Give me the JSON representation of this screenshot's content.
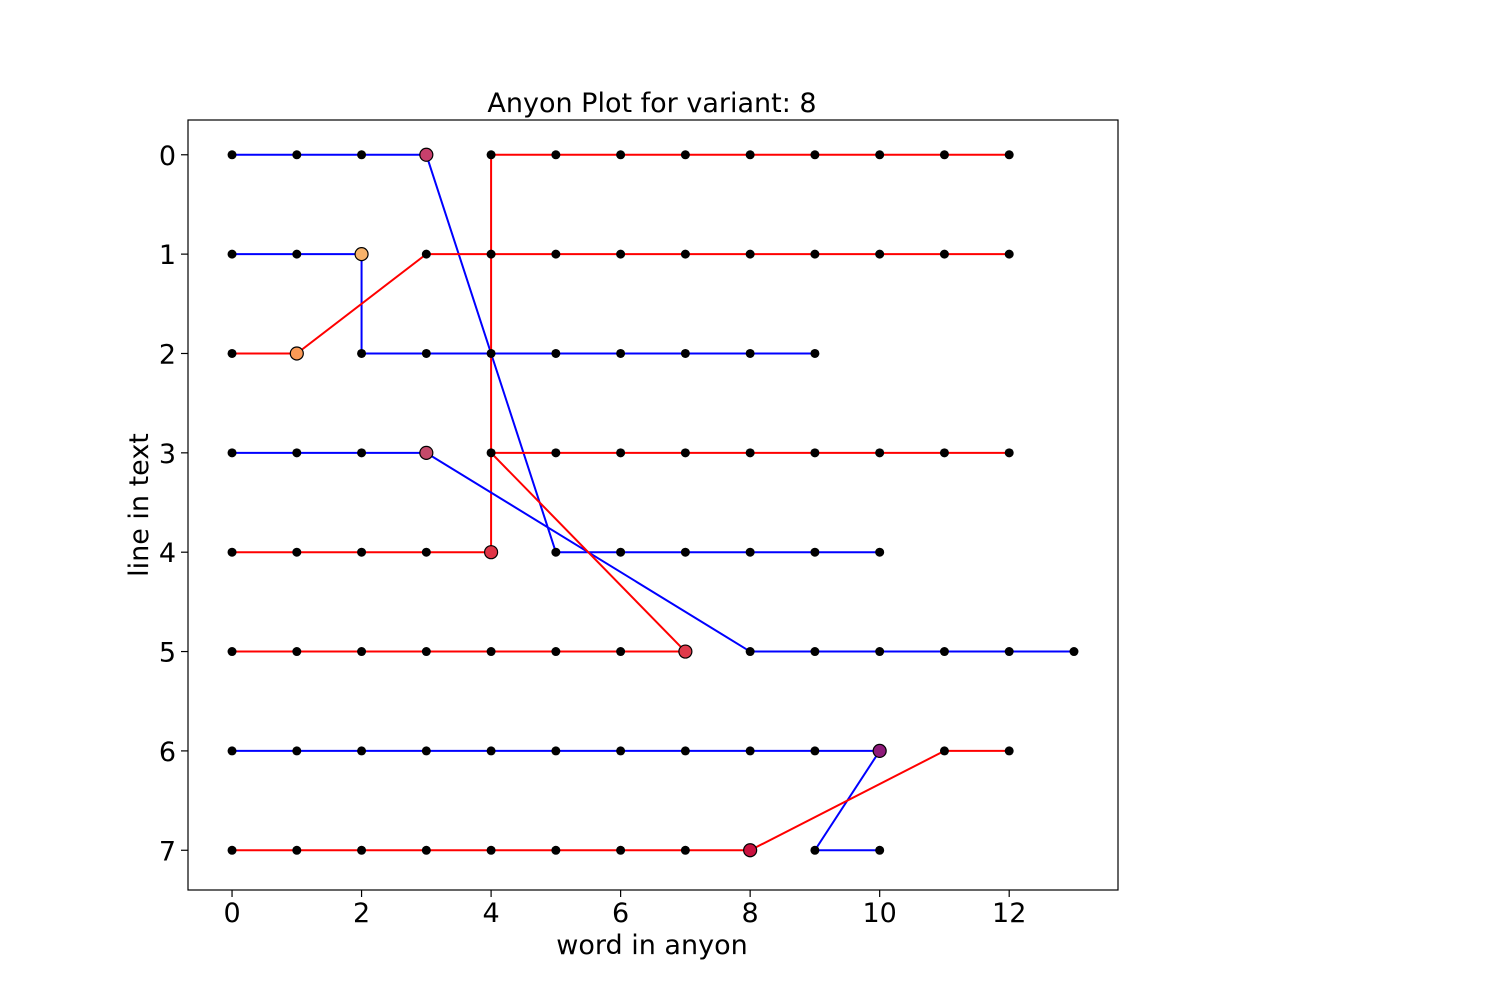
{
  "chart_data": {
    "type": "line",
    "title": "Anyon Plot for variant: 8",
    "xlabel": "word in anyon",
    "ylabel": "line in text",
    "xlim": [
      -0.68,
      13.68
    ],
    "ylim": [
      7.4,
      -0.35
    ],
    "y_inverted": true,
    "grid": false,
    "legend": "none",
    "xticks": [
      0,
      2,
      4,
      6,
      8,
      10,
      12
    ],
    "yticks": [
      0,
      1,
      2,
      3,
      4,
      5,
      6,
      7
    ],
    "colors": {
      "red": "#ff0000",
      "blue": "#0000ff",
      "node": "#000000"
    },
    "series": [
      {
        "color": "blue",
        "points": [
          [
            0,
            0
          ],
          [
            1,
            0
          ],
          [
            2,
            0
          ],
          [
            3,
            0
          ],
          [
            5,
            4
          ],
          [
            6,
            4
          ],
          [
            7,
            4
          ],
          [
            8,
            4
          ],
          [
            9,
            4
          ],
          [
            10,
            4
          ]
        ]
      },
      {
        "color": "red",
        "points": [
          [
            4,
            4
          ],
          [
            4,
            0
          ],
          [
            5,
            0
          ],
          [
            6,
            0
          ],
          [
            7,
            0
          ],
          [
            8,
            0
          ],
          [
            9,
            0
          ],
          [
            10,
            0
          ],
          [
            11,
            0
          ],
          [
            12,
            0
          ]
        ]
      },
      {
        "color": "blue",
        "points": [
          [
            0,
            1
          ],
          [
            1,
            1
          ],
          [
            2,
            1
          ],
          [
            2,
            2
          ],
          [
            3,
            2
          ],
          [
            4,
            2
          ],
          [
            5,
            2
          ],
          [
            6,
            2
          ],
          [
            7,
            2
          ],
          [
            8,
            2
          ],
          [
            9,
            2
          ]
        ]
      },
      {
        "color": "red",
        "points": [
          [
            0,
            2
          ],
          [
            1,
            2
          ],
          [
            3,
            1
          ],
          [
            4,
            1
          ],
          [
            5,
            1
          ],
          [
            6,
            1
          ],
          [
            7,
            1
          ],
          [
            8,
            1
          ],
          [
            9,
            1
          ],
          [
            10,
            1
          ],
          [
            11,
            1
          ],
          [
            12,
            1
          ]
        ]
      },
      {
        "color": "blue",
        "points": [
          [
            0,
            3
          ],
          [
            1,
            3
          ],
          [
            2,
            3
          ],
          [
            3,
            3
          ],
          [
            8,
            5
          ],
          [
            9,
            5
          ],
          [
            10,
            5
          ],
          [
            11,
            5
          ],
          [
            12,
            5
          ],
          [
            13,
            5
          ]
        ]
      },
      {
        "color": "red",
        "points": [
          [
            7,
            5
          ],
          [
            4,
            3
          ],
          [
            5,
            3
          ],
          [
            6,
            3
          ],
          [
            7,
            3
          ],
          [
            8,
            3
          ],
          [
            9,
            3
          ],
          [
            10,
            3
          ],
          [
            11,
            3
          ],
          [
            12,
            3
          ]
        ]
      },
      {
        "color": "red",
        "points": [
          [
            0,
            4
          ],
          [
            1,
            4
          ],
          [
            2,
            4
          ],
          [
            3,
            4
          ],
          [
            4,
            4
          ]
        ]
      },
      {
        "color": "red",
        "points": [
          [
            0,
            5
          ],
          [
            1,
            5
          ],
          [
            2,
            5
          ],
          [
            3,
            5
          ],
          [
            4,
            5
          ],
          [
            5,
            5
          ],
          [
            6,
            5
          ],
          [
            7,
            5
          ]
        ]
      },
      {
        "color": "blue",
        "points": [
          [
            0,
            6
          ],
          [
            1,
            6
          ],
          [
            2,
            6
          ],
          [
            3,
            6
          ],
          [
            4,
            6
          ],
          [
            5,
            6
          ],
          [
            6,
            6
          ],
          [
            7,
            6
          ],
          [
            8,
            6
          ],
          [
            9,
            6
          ],
          [
            10,
            6
          ],
          [
            9,
            7
          ],
          [
            10,
            7
          ]
        ]
      },
      {
        "color": "red",
        "points": [
          [
            0,
            7
          ],
          [
            1,
            7
          ],
          [
            2,
            7
          ],
          [
            3,
            7
          ],
          [
            4,
            7
          ],
          [
            5,
            7
          ],
          [
            6,
            7
          ],
          [
            7,
            7
          ],
          [
            8,
            7
          ],
          [
            11,
            6
          ],
          [
            12,
            6
          ]
        ]
      }
    ],
    "highlight_points": [
      {
        "x": 3,
        "y": 0,
        "color": "#c8406c"
      },
      {
        "x": 2,
        "y": 1,
        "color": "#f7b26a"
      },
      {
        "x": 1,
        "y": 2,
        "color": "#fb9a56"
      },
      {
        "x": 3,
        "y": 3,
        "color": "#c54a6a"
      },
      {
        "x": 4,
        "y": 4,
        "color": "#e03547"
      },
      {
        "x": 7,
        "y": 5,
        "color": "#e03a4b"
      },
      {
        "x": 10,
        "y": 6,
        "color": "#8e1a7a"
      },
      {
        "x": 8,
        "y": 7,
        "color": "#c9123f"
      }
    ]
  }
}
